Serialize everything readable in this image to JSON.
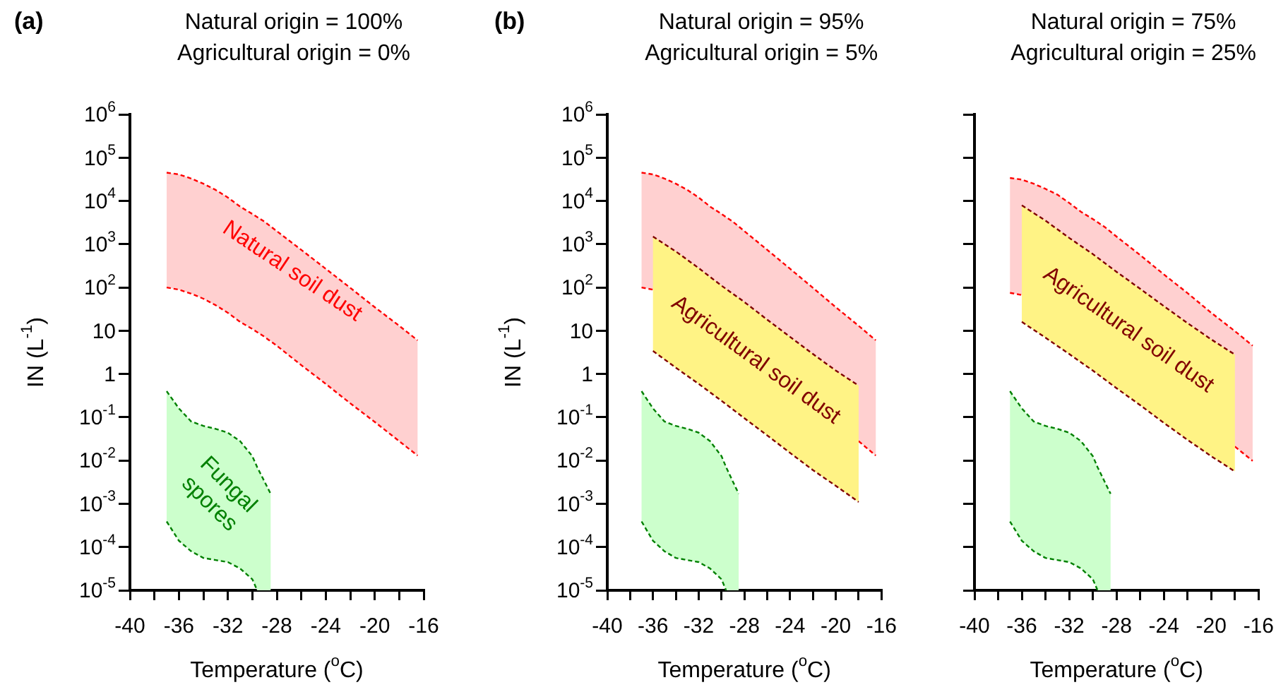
{
  "chart_data": [
    {
      "type": "area",
      "title": "Natural origin = 100%\nAgricultural origin = 0%",
      "annotations": [
        "(a)"
      ],
      "xlabel": "Temperature ($^{o}$C)",
      "ylabel": "IN (L$^{-1}$)",
      "log": "y",
      "line_style": "dashed",
      "xlim": [
        -40,
        -16
      ],
      "xticks": [
        -40,
        {
          "value": -38,
          "label": null
        },
        -36,
        {
          "value": -34,
          "label": null
        },
        -32,
        {
          "value": -30,
          "label": null
        },
        -28,
        {
          "value": -26,
          "label": null
        },
        -24,
        {
          "value": -22,
          "label": null
        },
        -20,
        {
          "value": -18,
          "label": null
        },
        -16
      ],
      "ylim": [
        1e-05,
        1000000
      ],
      "yticks": [
        {
          "value": 1000000,
          "label": "10$^{6}$"
        },
        {
          "value": 100000,
          "label": "10$^{5}$"
        },
        {
          "value": 10000,
          "label": "10$^{4}$"
        },
        {
          "value": 1000,
          "label": "10$^{3}$"
        },
        {
          "value": 100,
          "label": "10$^{2}$"
        },
        10,
        1,
        {
          "value": 0.1,
          "label": "10$^{-1}$"
        },
        {
          "value": 0.01,
          "label": "10$^{-2}$"
        },
        {
          "value": 0.001,
          "label": "10$^{-3}$"
        },
        {
          "value": 0.0001,
          "label": "10$^{-4}$"
        },
        {
          "value": 1e-05,
          "label": "10$^{-5}$"
        }
      ],
      "series": [
        {
          "name": "Natural soil dust",
          "color": "#ffd0d0",
          "x": [
            -37,
            -36,
            -35,
            -34,
            -33,
            -32,
            -31,
            -30,
            -29,
            -28,
            -26,
            -24,
            -22,
            -20,
            -18,
            -16.5
          ],
          "values": [
            45000,
            41000,
            33000,
            25000,
            18000,
            12000,
            7400,
            5000,
            3300,
            2000,
            740,
            270,
            98,
            35,
            13,
            6
          ]
        },
        {
          "type": "line",
          "color": "#ff0000",
          "x": [
            -37,
            -36,
            -35,
            -34,
            -33,
            -32,
            -31,
            -30,
            -29,
            -28,
            -26,
            -24,
            -22,
            -20,
            -18,
            -16.5
          ],
          "values": [
            100,
            89,
            72,
            55,
            39,
            26,
            16,
            11,
            7.2,
            4.5,
            1.6,
            0.59,
            0.21,
            0.078,
            0.028,
            0.013
          ]
        },
        {
          "name": "Fungal spores",
          "color": "#ccffcc",
          "x": [
            -37,
            -36,
            -35,
            -34,
            -33,
            -32,
            -31,
            -30,
            -29.6,
            -28.5
          ],
          "values": [
            0.4,
            0.16,
            0.08,
            0.063,
            0.054,
            0.044,
            0.028,
            0.0126,
            0.007,
            0.0017
          ]
        },
        {
          "type": "line",
          "color": "#008000",
          "x": [
            -37,
            -36,
            -35,
            -34,
            -33,
            -32,
            -31,
            -30,
            -29.6
          ],
          "values": [
            0.00039,
            0.00014,
            8e-05,
            5.6e-05,
            5e-05,
            4.5e-05,
            3.2e-05,
            1.8e-05,
            1e-05
          ]
        }
      ]
    },
    {
      "type": "area",
      "title": "Natural origin = 95%\nAgricultural origin = 5%",
      "annotations": [
        "(b)"
      ],
      "xlabel": "Temperature ($^{o}$C)",
      "ylabel": "IN (L$^{-1}$)",
      "log": "y",
      "line_style": "dashed",
      "xlim": [
        -40,
        -16
      ],
      "xticks": [
        -40,
        {
          "value": -38,
          "label": null
        },
        -36,
        {
          "value": -34,
          "label": null
        },
        -32,
        {
          "value": -30,
          "label": null
        },
        -28,
        {
          "value": -26,
          "label": null
        },
        -24,
        {
          "value": -22,
          "label": null
        },
        -20,
        {
          "value": -18,
          "label": null
        },
        -16
      ],
      "ylim": [
        1e-05,
        1000000
      ],
      "yticks": [
        {
          "value": 1000000,
          "label": "10$^{6}$"
        },
        {
          "value": 100000,
          "label": "10$^{5}$"
        },
        {
          "value": 10000,
          "label": "10$^{4}$"
        },
        {
          "value": 1000,
          "label": "10$^{3}$"
        },
        {
          "value": 100,
          "label": "10$^{2}$"
        },
        10,
        1,
        {
          "value": 0.1,
          "label": "10$^{-1}$"
        },
        {
          "value": 0.01,
          "label": "10$^{-2}$"
        },
        {
          "value": 0.001,
          "label": "10$^{-3}$"
        },
        {
          "value": 0.0001,
          "label": "10$^{-4}$"
        },
        {
          "value": 1e-05,
          "label": "10$^{-5}$"
        }
      ],
      "series": [
        {
          "color": "#ffd0d0",
          "x": [
            -37,
            -36,
            -35,
            -34,
            -33,
            -32,
            -31,
            -30,
            -29,
            -28,
            -26,
            -24,
            -22,
            -20,
            -18,
            -16.5
          ],
          "values": [
            45000,
            41000,
            33000,
            25000,
            18000,
            12000,
            7400,
            5000,
            3300,
            2000,
            740,
            270,
            98,
            35,
            13,
            6
          ]
        },
        {
          "type": "line",
          "color": "#ff0000",
          "x": [
            -37,
            -36,
            -35,
            -34,
            -33,
            -32,
            -31,
            -30,
            -29,
            -28,
            -26,
            -24,
            -22,
            -20,
            -18,
            -16.5
          ],
          "values": [
            100,
            89,
            null,
            null,
            null,
            null,
            null,
            null,
            null,
            null,
            null,
            null,
            null,
            null,
            0.028,
            0.013
          ]
        },
        {
          "color": "#ccffcc",
          "x": [
            -37,
            -36,
            -35,
            -34,
            -33,
            -32,
            -31,
            -30,
            -29.6,
            -28.5
          ],
          "values": [
            0.4,
            0.16,
            0.08,
            0.063,
            0.054,
            0.044,
            0.028,
            0.0126,
            0.007,
            0.0017
          ]
        },
        {
          "type": "line",
          "color": "#008000",
          "x": [
            -37,
            -36,
            -35,
            -34,
            -33,
            -32,
            -31,
            -30,
            -29.6
          ],
          "values": [
            0.00039,
            0.00014,
            8e-05,
            5.6e-05,
            5e-05,
            4.5e-05,
            3.2e-05,
            1.8e-05,
            1e-05
          ]
        },
        {
          "name": "Agricultural soil dust",
          "color": "#fff385",
          "x": [
            -36,
            -34,
            -32,
            -30,
            -28,
            -26,
            -24,
            -22,
            -20,
            -18
          ],
          "values": [
            1500,
            680,
            280,
            110,
            46,
            18,
            7.2,
            2.9,
            1.2,
            0.54
          ]
        },
        {
          "type": "line",
          "color": "#800000",
          "x": [
            -36,
            -34,
            -32,
            -30,
            -28,
            -26,
            -24,
            -22,
            -20,
            -18
          ],
          "values": [
            3.4,
            1.4,
            0.59,
            0.24,
            0.095,
            0.038,
            0.015,
            0.006,
            0.0026,
            0.0011
          ]
        }
      ]
    },
    {
      "type": "area",
      "title": "Natural origin = 75%\nAgricultural origin = 25%",
      "xlabel": "Temperature ($^{o}$C)",
      "log": "y",
      "line_style": "dashed",
      "tick_labels": "x",
      "xlim": [
        -40,
        -16
      ],
      "xticks": [
        -40,
        {
          "value": -38,
          "label": null
        },
        -36,
        {
          "value": -34,
          "label": null
        },
        -32,
        {
          "value": -30,
          "label": null
        },
        -28,
        {
          "value": -26,
          "label": null
        },
        -24,
        {
          "value": -22,
          "label": null
        },
        -20,
        {
          "value": -18,
          "label": null
        },
        -16
      ],
      "ylim": [
        1e-05,
        1000000
      ],
      "yticks": [
        1000000,
        100000,
        10000,
        1000,
        100,
        10,
        1,
        0.1,
        0.01,
        0.001,
        0.0001,
        1e-05
      ],
      "series": [
        {
          "color": "#ffd0d0",
          "x": [
            -37,
            -36,
            -35,
            -34,
            -33,
            -32,
            -31,
            -30,
            -29,
            -28,
            -26,
            -24,
            -22,
            -20,
            -18,
            -16.5
          ],
          "values": [
            34000,
            31000,
            25000,
            19000,
            14000,
            9000,
            5600,
            3800,
            2500,
            1500,
            560,
            200,
            74,
            26,
            9.8,
            4.5
          ]
        },
        {
          "type": "line",
          "color": "#ff0000",
          "x": [
            -37,
            -36,
            -35,
            -34,
            -33,
            -32,
            -31,
            -30,
            -29,
            -28,
            -26,
            -24,
            -22,
            -20,
            -18,
            -16.5
          ],
          "values": [
            75,
            67,
            null,
            null,
            null,
            null,
            null,
            null,
            null,
            null,
            null,
            null,
            null,
            null,
            0.021,
            0.0098
          ]
        },
        {
          "color": "#ccffcc",
          "x": [
            -37,
            -36,
            -35,
            -34,
            -33,
            -32,
            -31,
            -30,
            -29.6,
            -28.5
          ],
          "values": [
            0.4,
            0.16,
            0.08,
            0.063,
            0.054,
            0.044,
            0.028,
            0.0126,
            0.007,
            0.0017
          ]
        },
        {
          "type": "line",
          "color": "#008000",
          "x": [
            -37,
            -36,
            -35,
            -34,
            -33,
            -32,
            -31,
            -30,
            -29.6
          ],
          "values": [
            0.00039,
            0.00014,
            8e-05,
            5.6e-05,
            5e-05,
            4.5e-05,
            3.2e-05,
            1.8e-05,
            1e-05
          ]
        },
        {
          "name": "Agricultural soil dust",
          "color": "#fff385",
          "x": [
            -36,
            -34,
            -32,
            -30,
            -28,
            -26,
            -24,
            -22,
            -20,
            -18
          ],
          "values": [
            7900,
            3500,
            1400,
            590,
            230,
            93,
            37,
            15,
            6.3,
            2.8
          ]
        },
        {
          "type": "line",
          "color": "#800000",
          "x": [
            -36,
            -34,
            -32,
            -30,
            -28,
            -26,
            -24,
            -22,
            -20,
            -18
          ],
          "values": [
            16,
            6.9,
            2.9,
            1.2,
            0.47,
            0.19,
            0.074,
            0.03,
            0.0126,
            0.0056
          ]
        }
      ]
    }
  ]
}
